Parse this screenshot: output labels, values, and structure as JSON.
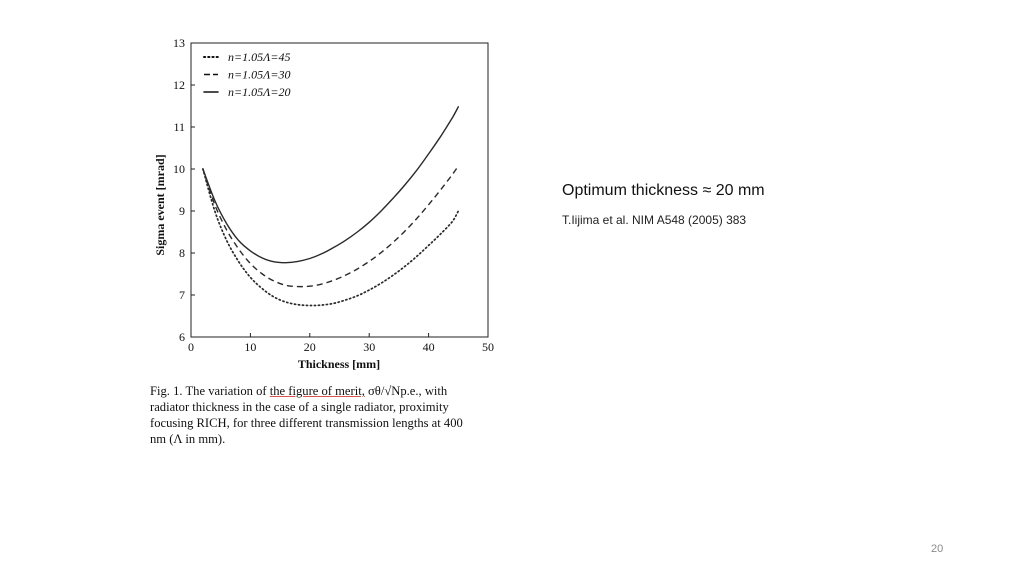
{
  "chart_data": {
    "type": "line",
    "title": "",
    "xlabel": "Thickness [mm]",
    "ylabel": "Sigma event [mrad]",
    "xlim": [
      0,
      50
    ],
    "ylim": [
      6,
      13
    ],
    "xticks": [
      0,
      10,
      20,
      30,
      40,
      50
    ],
    "yticks": [
      6,
      7,
      8,
      9,
      10,
      11,
      12,
      13
    ],
    "grid": false,
    "legend_position": "top-left",
    "x": [
      2,
      4,
      6,
      8,
      10,
      12,
      14,
      16,
      18,
      20,
      22,
      24,
      26,
      28,
      30,
      32,
      34,
      36,
      38,
      40,
      42,
      44,
      45
    ],
    "series": [
      {
        "name": "n=1.05Λ=45",
        "style": "dotted",
        "values": [
          10.0,
          9.0,
          8.3,
          7.8,
          7.42,
          7.15,
          6.95,
          6.83,
          6.77,
          6.75,
          6.76,
          6.8,
          6.88,
          6.98,
          7.12,
          7.28,
          7.47,
          7.68,
          7.92,
          8.18,
          8.45,
          8.75,
          9.0
        ]
      },
      {
        "name": "n=1.05Λ=30",
        "style": "dashed",
        "values": [
          10.0,
          9.15,
          8.55,
          8.1,
          7.75,
          7.5,
          7.33,
          7.23,
          7.2,
          7.21,
          7.26,
          7.35,
          7.47,
          7.62,
          7.8,
          8.01,
          8.25,
          8.52,
          8.82,
          9.15,
          9.5,
          9.87,
          10.07
        ]
      },
      {
        "name": "n=1.05Λ=20",
        "style": "solid",
        "values": [
          10.0,
          9.25,
          8.7,
          8.3,
          8.05,
          7.88,
          7.79,
          7.77,
          7.8,
          7.87,
          7.98,
          8.13,
          8.3,
          8.5,
          8.73,
          9.0,
          9.3,
          9.62,
          9.97,
          10.36,
          10.77,
          11.22,
          11.48
        ]
      }
    ]
  },
  "caption": {
    "line1_pre": "Fig. 1. The variation of ",
    "line1_merit": "the figure of merit,",
    "line1_formula": " σθ/√Np.e., with",
    "line2": "radiator thickness in the case of a single radiator, proximity",
    "line3": "focusing RICH, for three different transmission lengths at 400",
    "line4": "nm (Λ in mm)."
  },
  "note": {
    "title": "Optimum thickness ≈ 20 mm",
    "reference": "T.Iijima et al. NIM A548 (2005) 383"
  },
  "page_number": "20"
}
